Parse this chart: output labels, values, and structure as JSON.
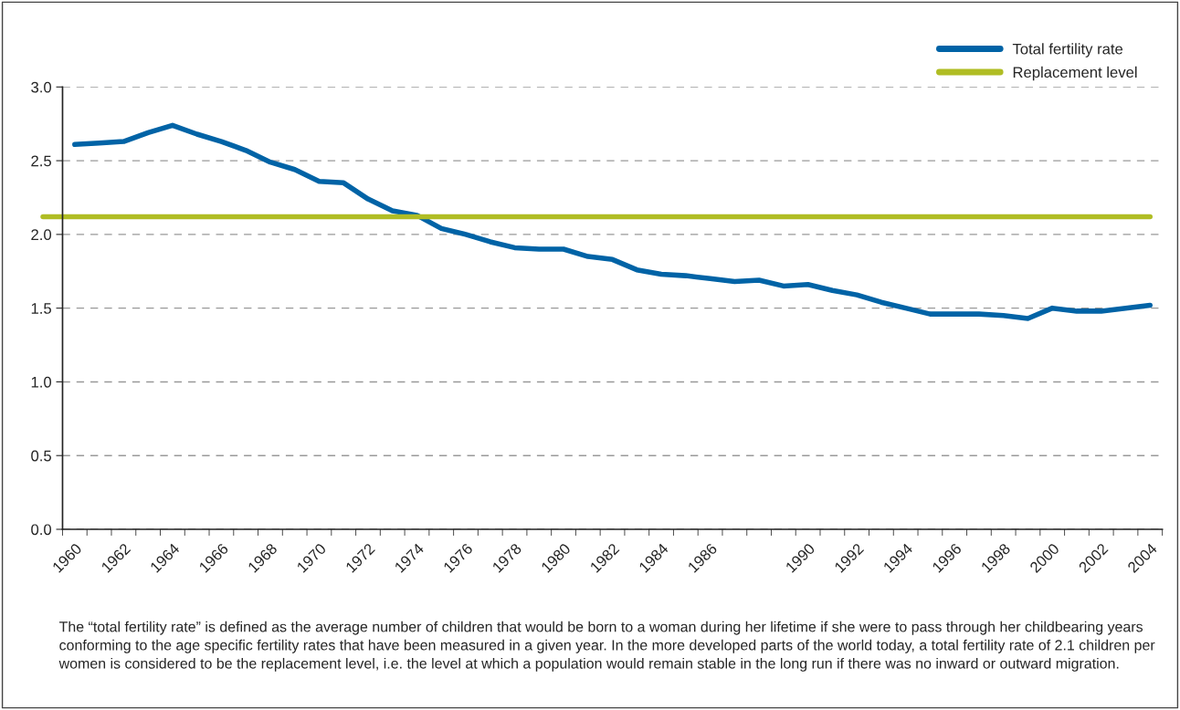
{
  "chart_data": {
    "type": "line",
    "categories": [
      "1960",
      null,
      "1962",
      null,
      "1964",
      null,
      "1966",
      null,
      "1968",
      null,
      "1970",
      null,
      "1972",
      null,
      "1974",
      null,
      "1976",
      null,
      "1978",
      null,
      "1980",
      null,
      "1982",
      null,
      "1984",
      null,
      "1986",
      null,
      null,
      null,
      "1990",
      null,
      "1992",
      null,
      "1994",
      null,
      "1996",
      null,
      "1998",
      null,
      "2000",
      null,
      "2002",
      null,
      "2004"
    ],
    "series": [
      {
        "name": "Total fertility rate",
        "color": "#0063a6",
        "values": [
          2.61,
          2.62,
          2.63,
          2.69,
          2.74,
          2.68,
          2.63,
          2.57,
          2.49,
          2.44,
          2.36,
          2.35,
          2.24,
          2.16,
          2.13,
          2.04,
          2.0,
          1.95,
          1.91,
          1.9,
          1.9,
          1.85,
          1.83,
          1.76,
          1.73,
          1.72,
          1.7,
          1.68,
          1.69,
          1.65,
          1.66,
          1.62,
          1.59,
          1.54,
          1.5,
          1.46,
          1.46,
          1.46,
          1.45,
          1.43,
          1.5,
          1.48,
          1.48,
          1.5,
          1.52
        ]
      }
    ],
    "ref_lines": [
      {
        "axis": "y",
        "value": 2.12,
        "label": "Replacement level",
        "color": "#b0bd24"
      }
    ],
    "ylim": [
      0,
      3.0
    ],
    "yticks": [
      {
        "value": 0,
        "label": "0.0"
      },
      {
        "value": 0.5,
        "label": "0.5"
      },
      {
        "value": 1.0,
        "label": "1.0"
      },
      {
        "value": 1.5,
        "label": "1.5"
      },
      {
        "value": 2.0,
        "label": "2.0"
      },
      {
        "value": 2.5,
        "label": "2.5"
      },
      {
        "value": 3.0,
        "label": "3.0"
      }
    ],
    "grid": "y",
    "legend": "top right",
    "marker": "none",
    "line_style": "solid",
    "annotations": [
      "The “total fertility rate” is defined as the average number of children that would be born to a woman during her lifetime if she were to pass through her childbearing years conforming to the age specific fertility rates that have been measured in a given year. In the more developed parts of the world today, a total fertility rate of 2.1 children per women is considered to be the replacement level, i.e. the level at which a population would remain stable in the long run if there was no inward or outward migration."
    ]
  }
}
